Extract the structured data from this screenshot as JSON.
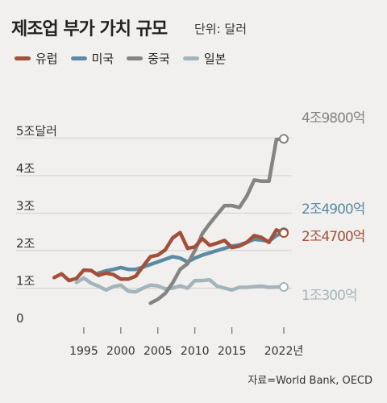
{
  "title": "제조업 부가 가치 규모",
  "unit_label": "단위: 달러",
  "source": "자료=World Bank, OECD",
  "chart_data": {
    "type": "line",
    "x_range": [
      1990,
      2022
    ],
    "ylim": [
      0,
      5.5
    ],
    "grid": true,
    "y_ticks": [
      {
        "value": 0,
        "label": "0"
      },
      {
        "value": 1,
        "label": "1조"
      },
      {
        "value": 2,
        "label": "2조"
      },
      {
        "value": 3,
        "label": "3조"
      },
      {
        "value": 4,
        "label": "4조"
      },
      {
        "value": 5,
        "label": "5조달러"
      }
    ],
    "x_ticks": [
      {
        "value": 1995,
        "label": "1995"
      },
      {
        "value": 2000,
        "label": "2000"
      },
      {
        "value": 2005,
        "label": "2005"
      },
      {
        "value": 2010,
        "label": "2010"
      },
      {
        "value": 2015,
        "label": "2015"
      },
      {
        "value": 2022,
        "label": "2022년"
      }
    ],
    "series": [
      {
        "name": "유럽",
        "color": "#a3503a",
        "x": [
          1991,
          1992,
          1993,
          1994,
          1995,
          1996,
          1997,
          1998,
          1999,
          2000,
          2001,
          2002,
          2003,
          2004,
          2005,
          2006,
          2007,
          2008,
          2009,
          2010,
          2011,
          2012,
          2013,
          2014,
          2015,
          2016,
          2017,
          2018,
          2019,
          2020,
          2021,
          2022
        ],
        "values": [
          1.28,
          1.38,
          1.2,
          1.26,
          1.48,
          1.47,
          1.34,
          1.4,
          1.36,
          1.24,
          1.24,
          1.32,
          1.58,
          1.84,
          1.88,
          2.02,
          2.34,
          2.48,
          2.06,
          2.1,
          2.32,
          2.14,
          2.2,
          2.27,
          2.08,
          2.12,
          2.22,
          2.4,
          2.35,
          2.22,
          2.55,
          2.47
        ],
        "end_label": "2조4700억"
      },
      {
        "name": "미국",
        "color": "#5b8aa3",
        "x": [
          1997,
          1998,
          1999,
          2000,
          2001,
          2002,
          2003,
          2004,
          2005,
          2006,
          2007,
          2008,
          2009,
          2010,
          2011,
          2012,
          2013,
          2014,
          2015,
          2016,
          2017,
          2018,
          2019,
          2020,
          2021,
          2022
        ],
        "values": [
          1.4,
          1.46,
          1.5,
          1.55,
          1.5,
          1.5,
          1.56,
          1.63,
          1.7,
          1.77,
          1.84,
          1.8,
          1.7,
          1.8,
          1.88,
          1.94,
          2.0,
          2.06,
          2.12,
          2.15,
          2.22,
          2.3,
          2.28,
          2.25,
          2.4,
          2.49
        ],
        "end_label": "2조4900억"
      },
      {
        "name": "중국",
        "color": "#848484",
        "x": [
          2004,
          2005,
          2006,
          2007,
          2008,
          2009,
          2010,
          2011,
          2012,
          2013,
          2014,
          2015,
          2016,
          2017,
          2018,
          2019,
          2020,
          2021,
          2022
        ],
        "values": [
          0.6,
          0.7,
          0.86,
          1.14,
          1.5,
          1.65,
          2.0,
          2.45,
          2.72,
          2.96,
          3.2,
          3.2,
          3.15,
          3.45,
          3.88,
          3.85,
          3.85,
          4.96,
          4.98
        ],
        "end_label": "4조9800억"
      },
      {
        "name": "일본",
        "color": "#a3b5bb",
        "x": [
          1994,
          1995,
          1996,
          1997,
          1998,
          1999,
          2000,
          2001,
          2002,
          2003,
          2004,
          2005,
          2006,
          2007,
          2008,
          2009,
          2010,
          2011,
          2012,
          2013,
          2014,
          2015,
          2016,
          2017,
          2018,
          2019,
          2020,
          2021,
          2022
        ],
        "values": [
          1.15,
          1.27,
          1.13,
          1.05,
          0.95,
          1.04,
          1.08,
          0.92,
          0.9,
          1.0,
          1.08,
          1.06,
          0.98,
          1.0,
          1.06,
          1.0,
          1.2,
          1.2,
          1.22,
          1.05,
          1.0,
          0.95,
          1.02,
          1.02,
          1.04,
          1.05,
          1.02,
          1.03,
          1.03
        ],
        "end_label": "1조300억"
      }
    ]
  }
}
